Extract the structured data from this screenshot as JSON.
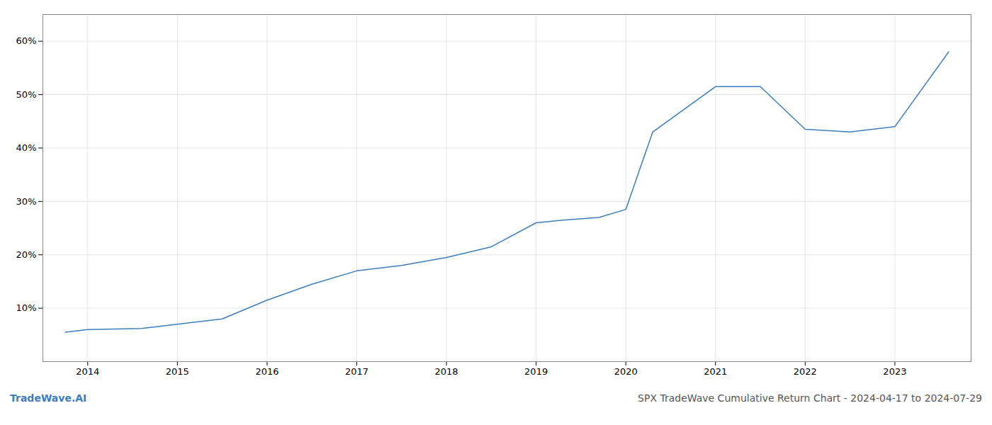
{
  "chart_data": {
    "type": "line",
    "title": "SPX TradeWave Cumulative Return Chart - 2024-04-17 to 2024-07-29",
    "annotations": [
      {
        "text": "TradeWave.AI"
      }
    ],
    "x": [
      2013.75,
      2014.0,
      2014.6,
      2015.0,
      2015.5,
      2016.0,
      2016.5,
      2017.0,
      2017.5,
      2018.0,
      2018.5,
      2019.0,
      2019.3,
      2019.7,
      2020.0,
      2020.3,
      2021.0,
      2021.5,
      2022.0,
      2022.3,
      2022.5,
      2023.0,
      2023.6
    ],
    "values": [
      5.5,
      6.0,
      6.2,
      7.0,
      8.0,
      11.5,
      14.5,
      17.0,
      18.0,
      19.5,
      21.5,
      26.0,
      26.5,
      27.0,
      28.5,
      43.0,
      51.5,
      51.5,
      43.5,
      43.2,
      43.0,
      44.0,
      58.0
    ],
    "color": "#3a7ebf",
    "xlim": [
      2013.5,
      2023.85
    ],
    "xticks": [
      2014,
      2015,
      2016,
      2017,
      2018,
      2019,
      2020,
      2021,
      2022,
      2023
    ],
    "ylim": [
      0,
      65
    ],
    "yticks": [
      {
        "value": 10,
        "label": "10%"
      },
      {
        "value": 20,
        "label": "20%"
      },
      {
        "value": 30,
        "label": "30%"
      },
      {
        "value": 40,
        "label": "40%"
      },
      {
        "value": 50,
        "label": "50%"
      },
      {
        "value": 60,
        "label": "60%"
      }
    ],
    "grid": true
  }
}
